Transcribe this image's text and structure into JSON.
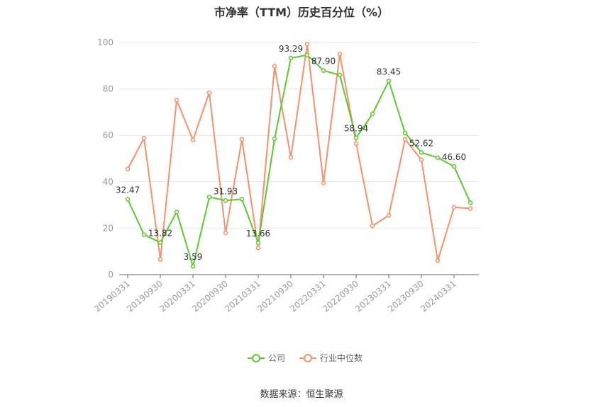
{
  "chart_data": {
    "type": "line",
    "title": "市净率（TTM）历史百分位（%）",
    "source": "数据来源：恒生聚源",
    "ylim": [
      0,
      100
    ],
    "yticks": [
      0,
      20,
      40,
      60,
      80,
      100
    ],
    "grid": true,
    "legend_position": "bottom",
    "x": [
      "20190331",
      "20190630",
      "20190930",
      "20191231",
      "20200331",
      "20200630",
      "20200930",
      "20201231",
      "20210331",
      "20210630",
      "20210930",
      "20211231",
      "20220331",
      "20220630",
      "20220930",
      "20221231",
      "20230331",
      "20230630",
      "20230930",
      "20231231",
      "20240331",
      "20240630"
    ],
    "x_tick_labels": [
      "20190331",
      "20190930",
      "20200331",
      "20200930",
      "20210331",
      "20210930",
      "20220331",
      "20220930",
      "20230331",
      "20230930",
      "20240331"
    ],
    "series": [
      {
        "name": "公司",
        "color": "#5ec832",
        "values": [
          32.47,
          17.2,
          13.82,
          27.0,
          3.59,
          33.4,
          31.93,
          32.5,
          13.66,
          58.5,
          93.29,
          94.6,
          87.9,
          86.0,
          58.94,
          69.2,
          83.45,
          61.0,
          52.62,
          50.4,
          46.6,
          31.0
        ],
        "labels": [
          "32.47",
          null,
          "13.82",
          null,
          "3.59",
          null,
          "31.93",
          null,
          "13.66",
          null,
          "93.29",
          null,
          "87.90",
          null,
          "58.94",
          null,
          "83.45",
          null,
          "52.62",
          null,
          "46.60",
          null
        ]
      },
      {
        "name": "行业中位数",
        "color": "#f4936b",
        "values": [
          45.5,
          58.8,
          6.5,
          75.2,
          58.0,
          78.4,
          18.0,
          58.3,
          11.5,
          89.8,
          50.5,
          99.2,
          39.5,
          95.0,
          56.5,
          21.0,
          25.5,
          58.3,
          49.5,
          6.0,
          29.0,
          28.5
        ],
        "labels": []
      }
    ]
  }
}
